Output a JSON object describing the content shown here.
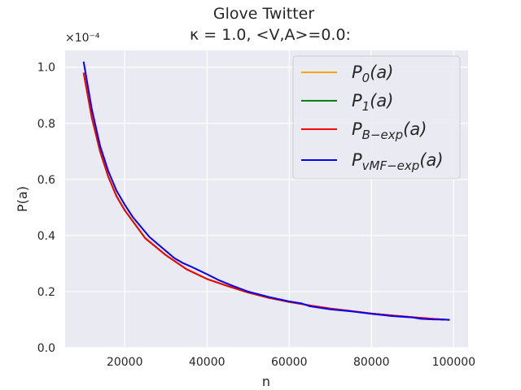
{
  "chart_data": {
    "type": "line",
    "title_line1": "Glove Twitter",
    "title_line2": "κ = 1.0, <V,A>=0.0:",
    "xlabel": "n",
    "ylabel": "P(a)",
    "y_multiplier": "×10⁻⁴",
    "xlim": [
      5500,
      103500
    ],
    "ylim": [
      0,
      1.06
    ],
    "xticks": [
      20000,
      40000,
      60000,
      80000,
      100000
    ],
    "yticks": [
      0.0,
      0.2,
      0.4,
      0.6,
      0.8,
      1.0
    ],
    "xtick_labels": [
      "20000",
      "40000",
      "60000",
      "80000",
      "100000"
    ],
    "ytick_labels": [
      "0.0",
      "0.2",
      "0.4",
      "0.6",
      "0.8",
      "1.0"
    ],
    "grid": true,
    "legend_position": "top-right",
    "series": [
      {
        "name": "P_0(a)",
        "label_main": "P",
        "label_sub": "0",
        "label_tail": "(a)",
        "color": "#FFA500",
        "x": [
          10000,
          12000,
          14000,
          16000,
          18000,
          20000,
          25000,
          30000,
          35000,
          40000,
          45000,
          50000,
          55000,
          60000,
          65000,
          70000,
          75000,
          80000,
          85000,
          90000,
          95000,
          99000
        ],
        "y": [
          0.98,
          0.82,
          0.7,
          0.61,
          0.54,
          0.49,
          0.39,
          0.33,
          0.28,
          0.245,
          0.22,
          0.197,
          0.178,
          0.163,
          0.151,
          0.14,
          0.131,
          0.122,
          0.115,
          0.109,
          0.103,
          0.099
        ]
      },
      {
        "name": "P_1(a)",
        "label_main": "P",
        "label_sub": "1",
        "label_tail": "(a)",
        "color": "#008000",
        "x": [
          10000,
          12000,
          14000,
          16000,
          18000,
          20000,
          25000,
          30000,
          35000,
          40000,
          45000,
          50000,
          55000,
          60000,
          65000,
          70000,
          75000,
          80000,
          85000,
          90000,
          95000,
          99000
        ],
        "y": [
          0.98,
          0.82,
          0.7,
          0.61,
          0.54,
          0.49,
          0.39,
          0.33,
          0.28,
          0.245,
          0.22,
          0.197,
          0.178,
          0.163,
          0.151,
          0.14,
          0.131,
          0.122,
          0.115,
          0.109,
          0.103,
          0.099
        ]
      },
      {
        "name": "P_B-exp(a)",
        "label_main": "P",
        "label_sub": "B−exp",
        "label_tail": "(a)",
        "color": "#FF0000",
        "x": [
          10000,
          12000,
          14000,
          16000,
          18000,
          20000,
          25000,
          30000,
          35000,
          40000,
          45000,
          50000,
          55000,
          60000,
          65000,
          70000,
          75000,
          80000,
          85000,
          90000,
          95000,
          99000
        ],
        "y": [
          0.98,
          0.82,
          0.7,
          0.61,
          0.54,
          0.49,
          0.39,
          0.33,
          0.28,
          0.245,
          0.22,
          0.197,
          0.178,
          0.163,
          0.151,
          0.14,
          0.131,
          0.122,
          0.115,
          0.109,
          0.103,
          0.099
        ]
      },
      {
        "name": "P_vMF-exp(a)",
        "label_main": "P",
        "label_sub": "vMF−exp",
        "label_tail": "(a)",
        "color": "#0000FF",
        "x": [
          10000,
          12000,
          14000,
          16000,
          18000,
          20000,
          22000,
          24000,
          26000,
          28000,
          30000,
          32000,
          34000,
          36000,
          38000,
          40000,
          43000,
          46000,
          50000,
          55000,
          60000,
          63000,
          65000,
          70000,
          75000,
          80000,
          85000,
          90000,
          92000,
          95000,
          99000
        ],
        "y": [
          1.02,
          0.85,
          0.72,
          0.63,
          0.56,
          0.51,
          0.465,
          0.43,
          0.395,
          0.37,
          0.345,
          0.32,
          0.303,
          0.29,
          0.276,
          0.262,
          0.24,
          0.222,
          0.2,
          0.181,
          0.165,
          0.158,
          0.148,
          0.137,
          0.13,
          0.121,
          0.113,
          0.108,
          0.103,
          0.101,
          0.1
        ]
      }
    ]
  }
}
